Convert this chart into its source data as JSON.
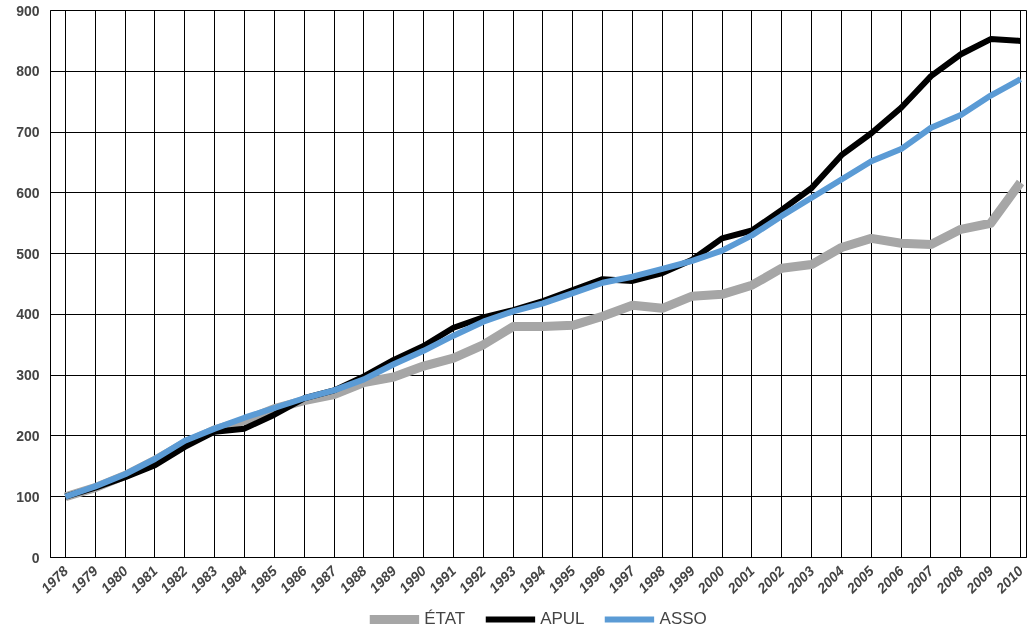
{
  "chart_data": {
    "type": "line",
    "x": [
      1978,
      1979,
      1980,
      1981,
      1982,
      1983,
      1984,
      1985,
      1986,
      1987,
      1988,
      1989,
      1990,
      1991,
      1992,
      1993,
      1994,
      1995,
      1996,
      1997,
      1998,
      1999,
      2000,
      2001,
      2002,
      2003,
      2004,
      2005,
      2006,
      2007,
      2008,
      2009,
      2010
    ],
    "series": [
      {
        "name": "ÉTAT",
        "color": "#a6a6a6",
        "values": [
          100,
          115,
          135,
          160,
          188,
          210,
          225,
          245,
          258,
          268,
          288,
          297,
          315,
          328,
          350,
          380,
          380,
          382,
          397,
          415,
          410,
          430,
          433,
          448,
          476,
          482,
          510,
          525,
          517,
          515,
          540,
          550,
          617
        ]
      },
      {
        "name": "APUL",
        "color": "#000000",
        "values": [
          100,
          115,
          132,
          152,
          182,
          207,
          212,
          235,
          262,
          275,
          298,
          325,
          348,
          378,
          395,
          407,
          422,
          440,
          458,
          455,
          468,
          490,
          525,
          538,
          572,
          608,
          662,
          698,
          740,
          792,
          828,
          853,
          850
        ]
      },
      {
        "name": "ASSO",
        "color": "#5b9bd5",
        "values": [
          100,
          117,
          137,
          162,
          192,
          212,
          230,
          246,
          262,
          275,
          293,
          318,
          340,
          365,
          388,
          405,
          418,
          435,
          452,
          462,
          475,
          488,
          505,
          530,
          562,
          592,
          622,
          652,
          672,
          707,
          728,
          760,
          787
        ]
      }
    ],
    "xlim": [
      1977.5,
      2010.2
    ],
    "xticks": [
      1978,
      1979,
      1980,
      1981,
      1982,
      1983,
      1984,
      1985,
      1986,
      1987,
      1988,
      1989,
      1990,
      1991,
      1992,
      1993,
      1994,
      1995,
      1996,
      1997,
      1998,
      1999,
      2000,
      2001,
      2002,
      2003,
      2004,
      2005,
      2006,
      2007,
      2008,
      2009,
      2010
    ],
    "ylim": [
      0,
      900
    ],
    "yticks": [
      0,
      100,
      200,
      300,
      400,
      500,
      600,
      700,
      800,
      900
    ],
    "grid": true,
    "legend": "bottom",
    "line_style": "solid",
    "marker": "none"
  }
}
